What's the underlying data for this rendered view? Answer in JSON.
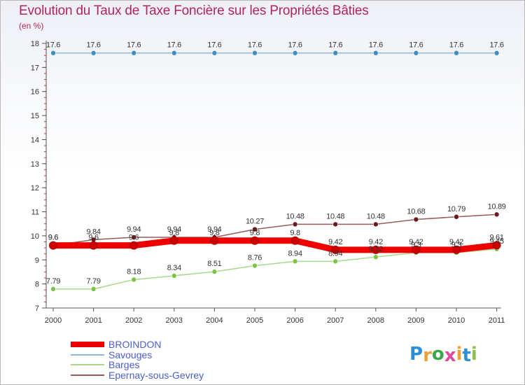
{
  "title": "Evolution du Taux de Taxe Foncière sur les Propriétés Bâties",
  "unit_label": "(en %)",
  "logo": {
    "text": "Proxiti",
    "letters": [
      "P",
      "r",
      "o",
      "x",
      "i",
      "t",
      "i"
    ],
    "colors": [
      "#2a8fd6",
      "#e8a13a",
      "#3aa84a",
      "#e04a9a",
      "#f0a030",
      "#2a8fd6",
      "#8bc34a"
    ]
  },
  "chart_data": {
    "type": "line",
    "title": "Evolution du Taux de Taxe Foncière sur les Propriétés Bâties",
    "ylabel": "(en %)",
    "xlabel": "",
    "ylim": [
      7,
      18
    ],
    "y_ticks": [
      7,
      8,
      9,
      10,
      11,
      12,
      13,
      14,
      15,
      16,
      17,
      18
    ],
    "categories": [
      "2000",
      "2001",
      "2002",
      "2003",
      "2004",
      "2005",
      "2006",
      "2007",
      "2008",
      "2009",
      "2010",
      "2011"
    ],
    "grid": false,
    "series": [
      {
        "name": "BROINDON",
        "color": "#ee0000",
        "marker": "#cc0000",
        "width": 9,
        "values": [
          9.6,
          9.6,
          9.6,
          9.8,
          9.8,
          9.8,
          9.8,
          9.42,
          9.42,
          9.42,
          9.42,
          9.61
        ],
        "labels": [
          "9.6",
          "9.6",
          "9.6",
          "9.8",
          "9.8",
          "9.8",
          "9.8",
          "9.42",
          "9.42",
          "9.42",
          "9.42",
          "9.61"
        ]
      },
      {
        "name": "Savouges",
        "color": "#8fb8d8",
        "marker": "#3f8dc7",
        "width": 1.5,
        "values": [
          17.6,
          17.6,
          17.6,
          17.6,
          17.6,
          17.6,
          17.6,
          17.6,
          17.6,
          17.6,
          17.6,
          17.6
        ],
        "labels": [
          "17.6",
          "17.6",
          "17.6",
          "17.6",
          "17.6",
          "17.6",
          "17.6",
          "17.6",
          "17.6",
          "17.6",
          "17.6",
          "17.6"
        ]
      },
      {
        "name": "Barges",
        "color": "#a8d88a",
        "marker": "#7cc446",
        "width": 1.5,
        "values": [
          7.79,
          7.79,
          8.18,
          8.34,
          8.51,
          8.76,
          8.94,
          8.94,
          9.12,
          9.3,
          9.3,
          9.45
        ],
        "labels": [
          "7.79",
          "7.79",
          "8.18",
          "8.34",
          "8.51",
          "8.76",
          "8.94",
          "8.94",
          "9.12",
          "9.3",
          "9.3",
          "9.45"
        ]
      },
      {
        "name": "Epernay-sous-Gevrey",
        "color": "#9a5a5a",
        "marker": "#6a1a1a",
        "width": 1.5,
        "values": [
          9.6,
          9.84,
          9.94,
          9.94,
          9.94,
          10.27,
          10.48,
          10.48,
          10.48,
          10.68,
          10.79,
          10.89
        ],
        "labels": [
          "9.6",
          "9.84",
          "9.94",
          "9.94",
          "9.94",
          "10.27",
          "10.48",
          "10.48",
          "10.48",
          "10.68",
          "10.79",
          "10.89"
        ]
      }
    ]
  }
}
